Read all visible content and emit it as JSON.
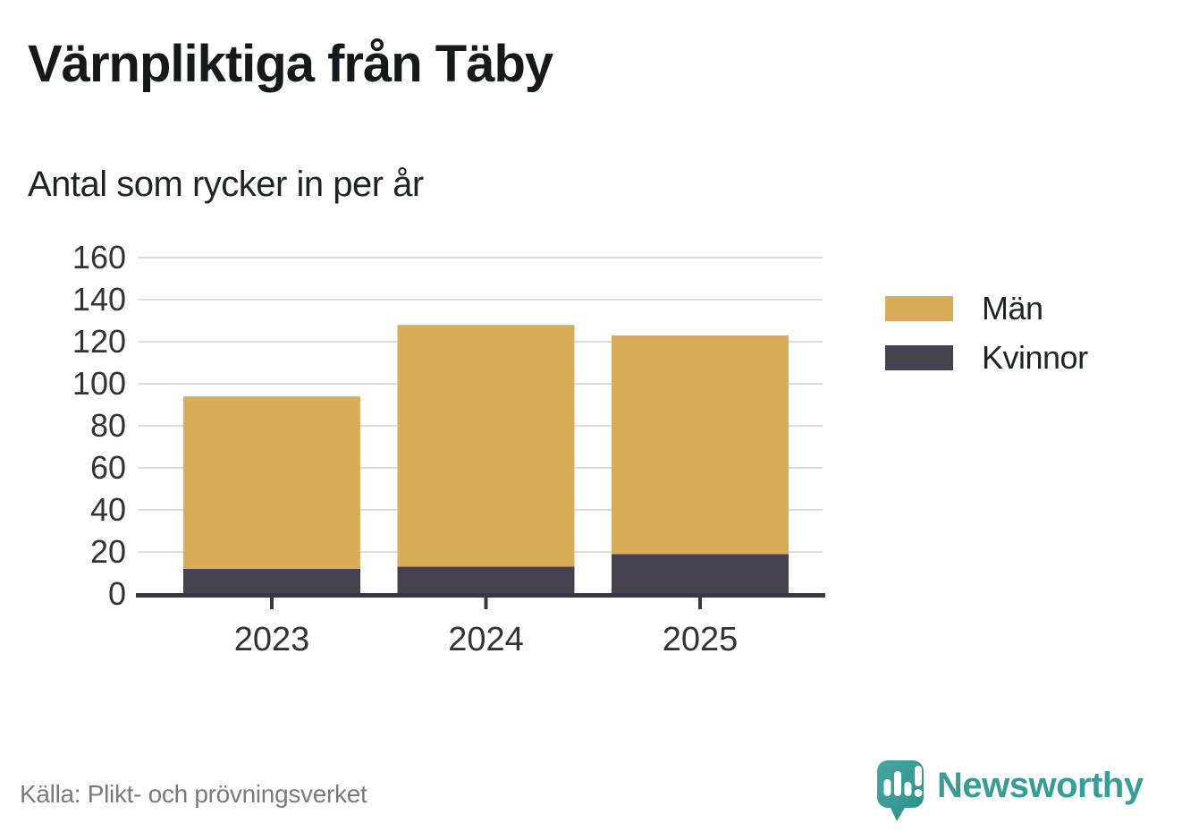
{
  "chart_data": {
    "type": "bar",
    "stacked": true,
    "title": "Värnpliktiga från Täby",
    "subtitle": "Antal som rycker in per år",
    "categories": [
      "2023",
      "2024",
      "2025"
    ],
    "series": [
      {
        "name": "Män",
        "color": "#D9AC5B",
        "values": [
          82,
          115,
          104
        ]
      },
      {
        "name": "Kvinnor",
        "color": "#45424E",
        "values": [
          12,
          13,
          19
        ]
      }
    ],
    "stack_order_bottom_to_top": [
      "Kvinnor",
      "Män"
    ],
    "totals": [
      94,
      128,
      123
    ],
    "xlabel": "",
    "ylabel": "",
    "ylim": [
      0,
      160
    ],
    "yticks": [
      0,
      20,
      40,
      60,
      80,
      100,
      120,
      140,
      160
    ],
    "grid": true,
    "legend_position": "right"
  },
  "footer": {
    "source": "Källa: Plikt- och prövningsverket",
    "brand": "Newsworthy"
  },
  "theme": {
    "men_color": "#D9AC5B",
    "women_color": "#45424E",
    "grid_color": "#DCDCDC",
    "axis_color": "#3B3845",
    "tick_text_color": "#333333",
    "muted_text_color": "#7A7A7E",
    "brand_teal": "#3A9D98"
  }
}
